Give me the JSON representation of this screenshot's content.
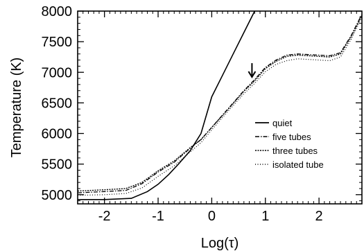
{
  "chart_data": {
    "type": "line",
    "title": "",
    "xlabel": "Log(τ)",
    "ylabel": "Temperature (K)",
    "xlim": [
      -2.5,
      2.8
    ],
    "ylim": [
      4850,
      8000
    ],
    "x_ticks": [
      -2,
      -1,
      0,
      1,
      2
    ],
    "x_tick_labels": [
      "-2",
      "-1",
      "0",
      "1",
      "2"
    ],
    "y_ticks": [
      5000,
      5500,
      6000,
      6500,
      7000,
      7500,
      8000
    ],
    "y_tick_labels": [
      "5000",
      "5500",
      "6000",
      "6500",
      "7000",
      "7500",
      "8000"
    ],
    "grid": false,
    "legend_position": "lower-right",
    "series": [
      {
        "name": "quiet",
        "style": "solid",
        "x": [
          -2.5,
          -2.0,
          -1.5,
          -1.2,
          -1.0,
          -0.8,
          -0.6,
          -0.4,
          -0.2,
          0.0,
          0.2,
          0.4,
          0.6,
          0.8
        ],
        "y": [
          4920,
          4920,
          4940,
          5050,
          5170,
          5330,
          5520,
          5720,
          6000,
          6600,
          6950,
          7300,
          7650,
          8000
        ]
      },
      {
        "name": "five tubes",
        "style": "dashdot",
        "x": [
          -2.5,
          -2.0,
          -1.6,
          -1.3,
          -1.0,
          -0.7,
          -0.4,
          -0.2,
          0.0,
          0.3,
          0.6,
          0.8,
          1.0,
          1.2,
          1.4,
          1.6,
          1.8,
          2.0,
          2.2,
          2.4,
          2.6,
          2.8
        ],
        "y": [
          5030,
          5050,
          5070,
          5180,
          5370,
          5530,
          5760,
          5900,
          6100,
          6400,
          6700,
          6880,
          7080,
          7200,
          7280,
          7300,
          7290,
          7280,
          7270,
          7320,
          7600,
          7950
        ]
      },
      {
        "name": "three tubes",
        "style": "densedot",
        "x": [
          -2.5,
          -2.0,
          -1.6,
          -1.3,
          -1.0,
          -0.7,
          -0.4,
          -0.2,
          0.0,
          0.3,
          0.6,
          0.8,
          1.0,
          1.2,
          1.4,
          1.6,
          1.8,
          2.0,
          2.2,
          2.4,
          2.6,
          2.8
        ],
        "y": [
          5060,
          5080,
          5100,
          5200,
          5390,
          5550,
          5770,
          5900,
          6100,
          6390,
          6690,
          6860,
          7060,
          7180,
          7260,
          7280,
          7270,
          7260,
          7250,
          7300,
          7580,
          7930
        ]
      },
      {
        "name": "isolated tube",
        "style": "dotted",
        "x": [
          -2.5,
          -2.0,
          -1.6,
          -1.3,
          -1.0,
          -0.7,
          -0.4,
          -0.2,
          0.0,
          0.3,
          0.6,
          0.8,
          1.0,
          1.2,
          1.4,
          1.6,
          1.8,
          2.0,
          2.2,
          2.4,
          2.6,
          2.8
        ],
        "y": [
          4990,
          5000,
          5020,
          5110,
          5300,
          5470,
          5700,
          5850,
          6060,
          6360,
          6650,
          6820,
          7010,
          7130,
          7190,
          7220,
          7210,
          7200,
          7190,
          7250,
          7540,
          7900
        ]
      }
    ],
    "annotations": [
      {
        "type": "arrow",
        "x": 0.75,
        "y": 6900,
        "direction": "down"
      }
    ]
  }
}
